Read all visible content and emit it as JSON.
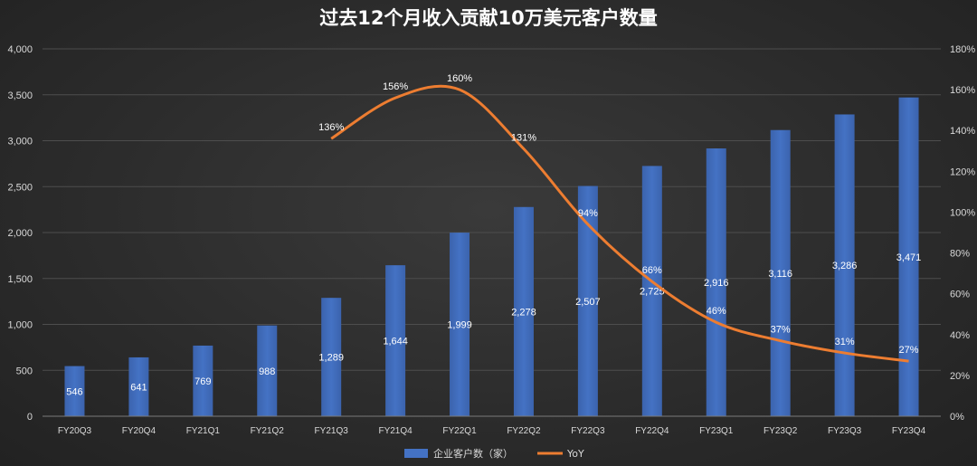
{
  "chart_data": {
    "type": "bar",
    "title": "过去12个月收入贡献10万美元客户数量",
    "categories": [
      "FY20Q3",
      "FY20Q4",
      "FY21Q1",
      "FY21Q2",
      "FY21Q3",
      "FY21Q4",
      "FY22Q1",
      "FY22Q2",
      "FY22Q3",
      "FY22Q4",
      "FY23Q1",
      "FY23Q2",
      "FY23Q3",
      "FY23Q4"
    ],
    "series": [
      {
        "name": "企业客户数（家）",
        "type": "bar",
        "axis": "left",
        "color": "#4472c4",
        "values": [
          546,
          641,
          769,
          988,
          1289,
          1644,
          1999,
          2278,
          2507,
          2725,
          2916,
          3116,
          3286,
          3471
        ],
        "labels": [
          "546",
          "641",
          "769",
          "988",
          "1,289",
          "1,644",
          "1,999",
          "2,278",
          "2,507",
          "2,725",
          "2,916",
          "3,116",
          "3,286",
          "3,471"
        ]
      },
      {
        "name": "YoY",
        "type": "line",
        "axis": "right",
        "color": "#ed7d31",
        "values": [
          null,
          null,
          null,
          null,
          136,
          156,
          160,
          131,
          94,
          66,
          46,
          37,
          31,
          27
        ],
        "labels": [
          "",
          "",
          "",
          "",
          "136%",
          "156%",
          "160%",
          "131%",
          "94%",
          "66%",
          "46%",
          "37%",
          "31%",
          "27%"
        ]
      }
    ],
    "ylim": [
      0,
      4000
    ],
    "y_ticks": [
      "0",
      "500",
      "1,000",
      "1,500",
      "2,000",
      "2,500",
      "3,000",
      "3,500",
      "4,000"
    ],
    "y2lim": [
      0,
      180
    ],
    "y2_ticks": [
      "0%",
      "20%",
      "40%",
      "60%",
      "80%",
      "100%",
      "120%",
      "140%",
      "160%",
      "180%"
    ],
    "grid": true,
    "legend": "bottom-center"
  }
}
